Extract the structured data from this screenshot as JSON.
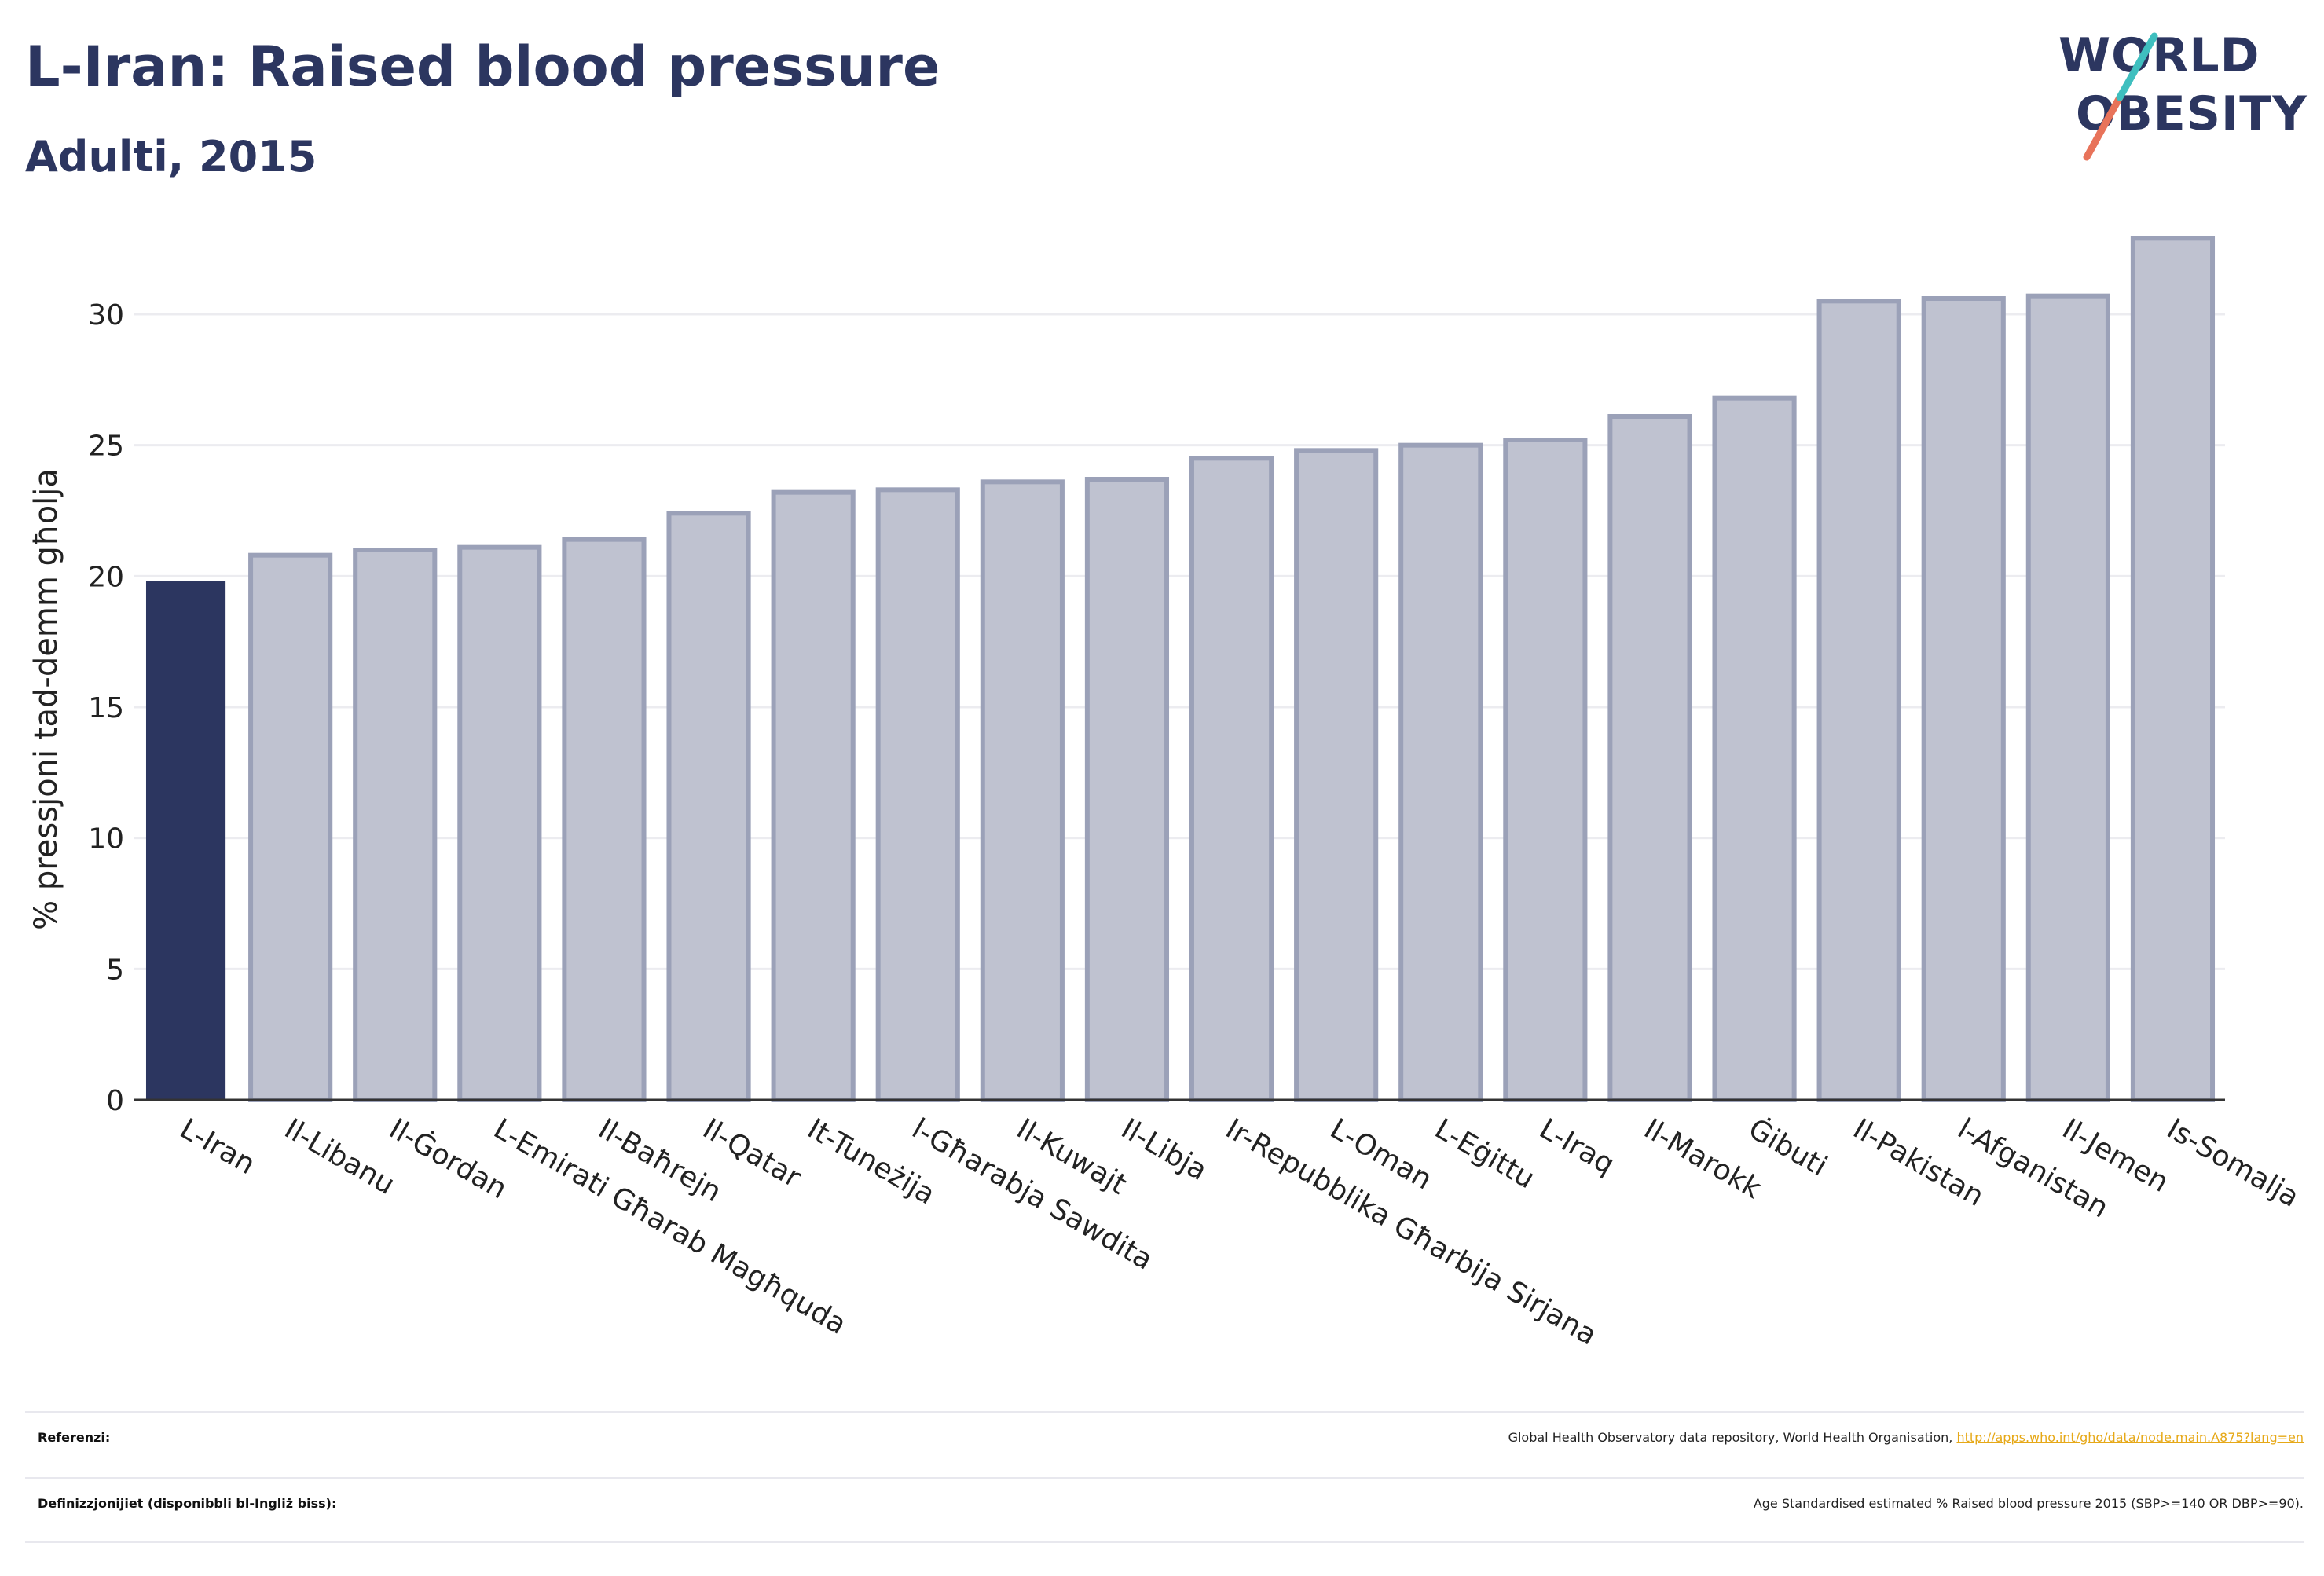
{
  "title": "L-Iran: Raised blood pressure",
  "subtitle": "Adulti, 2015",
  "logo": {
    "line1": "WORLD",
    "line2": "OBESITY"
  },
  "colors": {
    "highlight_bar": "#2c3660",
    "other_bar_fill": "#bfc2d0",
    "other_bar_stroke": "#9ba1b8",
    "gridline": "#ececf0",
    "logo_teal": "#3fbfbf",
    "logo_coral": "#e8735a"
  },
  "chart_data": {
    "type": "bar",
    "ylabel": "% pressjoni tad-demm għolja",
    "ylim": [
      0,
      33
    ],
    "yticks": [
      0,
      5,
      10,
      15,
      20,
      25,
      30
    ],
    "grid": true,
    "highlight": "L-Iran",
    "categories": [
      "L-Iran",
      "Il-Libanu",
      "Il-Ġordan",
      "L-Emirati Għarab Magħquda",
      "Il-Baħrejn",
      "Il-Qatar",
      "It-Tuneżija",
      "l-Għarabja Sawdita",
      "Il-Kuwajt",
      "Il-Libja",
      "Ir-Repubblika Għarbija Sirjana",
      "L-Oman",
      "L-Eġittu",
      "L-Iraq",
      "Il-Marokk",
      "Ġibuti",
      "Il-Pakistan",
      "l-Afganistan",
      "Il-Jemen",
      "Is-Somalja"
    ],
    "values": [
      19.8,
      20.8,
      21.0,
      21.1,
      21.4,
      22.4,
      23.2,
      23.3,
      23.6,
      23.7,
      24.5,
      24.8,
      25.0,
      25.2,
      26.1,
      26.8,
      30.5,
      30.6,
      30.7,
      32.9
    ]
  },
  "footer": {
    "references_label": "Referenzi:",
    "references_text": "Global Health Observatory data repository, World Health Organisation,",
    "references_link": "http://apps.who.int/gho/data/node.main.A875?lang=en",
    "definitions_label": "Definizzjonijiet (disponibbli bl-Ingliż biss):",
    "definitions_text": "Age Standardised estimated % Raised blood pressure 2015 (SBP>=140 OR DBP>=90)."
  }
}
